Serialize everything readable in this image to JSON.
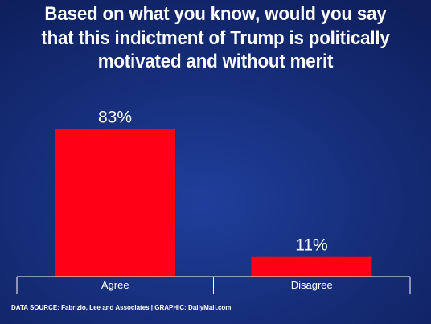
{
  "chart_data": {
    "type": "bar",
    "title_lines": [
      "Based on what you know, would you say",
      "that this indictment of Trump is politically",
      "motivated and without merit"
    ],
    "categories": [
      "Agree",
      "Disagree"
    ],
    "values": [
      83,
      11
    ],
    "value_labels": [
      "83%",
      "11%"
    ],
    "ylim": [
      0,
      100
    ],
    "grid": false,
    "legend": "none",
    "bar_color": "#ff0014"
  },
  "footer": {
    "source": "DATA SOURCE: Fabrizio, Lee and Associates | GRAPHIC: DailyMail.com"
  },
  "colors": {
    "background": "#17307e",
    "text": "#ffffff",
    "axis": "#ffffff"
  }
}
